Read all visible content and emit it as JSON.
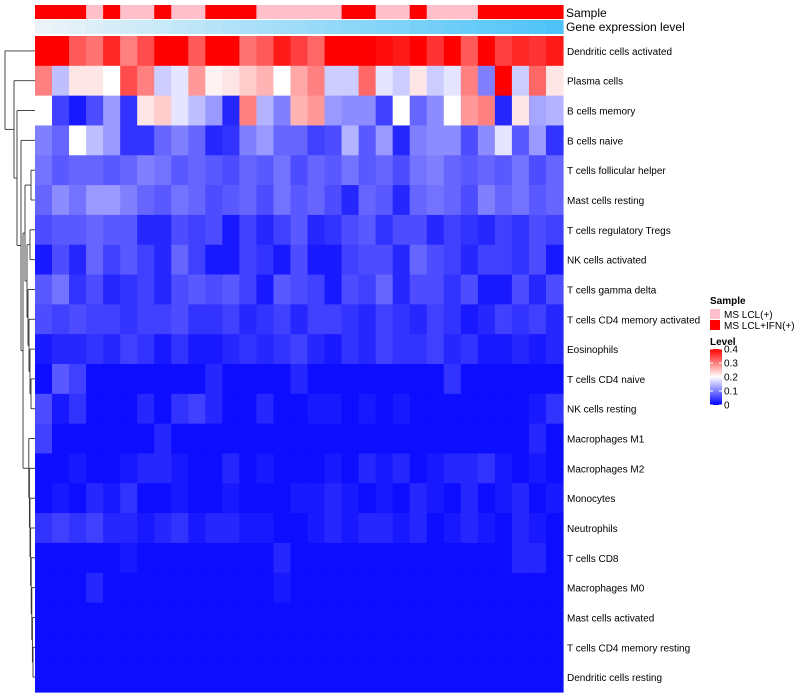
{
  "chart_data": {
    "type": "heatmap",
    "annotation_labels": [
      "Sample",
      "Gene expression level"
    ],
    "rows": [
      "Dendritic cells activated",
      "Plasma cells",
      "B cells memory",
      "B cells naive",
      "T cells follicular helper",
      "Mast cells resting",
      "T cells regulatory  Tregs",
      "NK cells activated",
      "T cells gamma delta",
      "T cells CD4 memory activated",
      "Eosinophils",
      "T cells CD4 naive",
      "NK cells resting",
      "Macrophages M1",
      "Macrophages M2",
      "Monocytes",
      "Neutrophils",
      "T cells CD8",
      "Macrophages M0",
      "Mast cells activated",
      "T cells CD4 memory resting",
      "Dendritic cells resting"
    ],
    "sample_groups": [
      "MS LCL+IFN(+)",
      "MS LCL+IFN(+)",
      "MS LCL+IFN(+)",
      "MS LCL(+)",
      "MS LCL+IFN(+)",
      "MS LCL(+)",
      "MS LCL(+)",
      "MS LCL+IFN(+)",
      "MS LCL(+)",
      "MS LCL(+)",
      "MS LCL+IFN(+)",
      "MS LCL+IFN(+)",
      "MS LCL+IFN(+)",
      "MS LCL(+)",
      "MS LCL(+)",
      "MS LCL(+)",
      "MS LCL(+)",
      "MS LCL(+)",
      "MS LCL+IFN(+)",
      "MS LCL+IFN(+)",
      "MS LCL(+)",
      "MS LCL(+)",
      "MS LCL+IFN(+)",
      "MS LCL(+)",
      "MS LCL(+)",
      "MS LCL(+)",
      "MS LCL+IFN(+)",
      "MS LCL+IFN(+)",
      "MS LCL+IFN(+)",
      "MS LCL+IFN(+)",
      "MS LCL+IFN(+)"
    ],
    "values": [
      [
        0.4,
        0.42,
        0.33,
        0.31,
        0.37,
        0.3,
        0.34,
        0.41,
        0.42,
        0.33,
        0.45,
        0.44,
        0.31,
        0.33,
        0.38,
        0.35,
        0.32,
        0.43,
        0.45,
        0.4,
        0.39,
        0.38,
        0.4,
        0.36,
        0.42,
        0.33,
        0.45,
        0.35,
        0.37,
        0.36,
        0.38
      ],
      [
        0.3,
        0.15,
        0.22,
        0.22,
        0.2,
        0.34,
        0.3,
        0.16,
        0.18,
        0.28,
        0.21,
        0.22,
        0.24,
        0.26,
        0.2,
        0.27,
        0.3,
        0.16,
        0.16,
        0.32,
        0.18,
        0.16,
        0.22,
        0.16,
        0.18,
        0.3,
        0.1,
        0.5,
        0.16,
        0.32,
        0.22
      ],
      [
        0.2,
        0.05,
        0.02,
        0.06,
        0.12,
        0.04,
        0.22,
        0.24,
        0.18,
        0.15,
        0.12,
        0.03,
        0.3,
        0.14,
        0.1,
        0.26,
        0.28,
        0.12,
        0.11,
        0.11,
        0.05,
        0.2,
        0.08,
        0.11,
        0.2,
        0.28,
        0.3,
        0.03,
        0.22,
        0.13,
        0.14
      ],
      [
        0.1,
        0.08,
        0.2,
        0.15,
        0.12,
        0.04,
        0.04,
        0.08,
        0.1,
        0.08,
        0.03,
        0.04,
        0.1,
        0.12,
        0.08,
        0.08,
        0.05,
        0.06,
        0.14,
        0.07,
        0.12,
        0.03,
        0.1,
        0.11,
        0.11,
        0.06,
        0.11,
        0.18,
        0.07,
        0.12,
        0.04
      ],
      [
        0.09,
        0.07,
        0.08,
        0.08,
        0.07,
        0.08,
        0.1,
        0.09,
        0.07,
        0.08,
        0.07,
        0.06,
        0.08,
        0.07,
        0.09,
        0.06,
        0.08,
        0.07,
        0.09,
        0.07,
        0.08,
        0.06,
        0.09,
        0.1,
        0.08,
        0.07,
        0.08,
        0.07,
        0.09,
        0.06,
        0.08
      ],
      [
        0.08,
        0.11,
        0.09,
        0.12,
        0.12,
        0.1,
        0.08,
        0.07,
        0.09,
        0.08,
        0.06,
        0.07,
        0.08,
        0.06,
        0.09,
        0.07,
        0.08,
        0.06,
        0.03,
        0.08,
        0.07,
        0.03,
        0.08,
        0.09,
        0.08,
        0.06,
        0.1,
        0.08,
        0.09,
        0.07,
        0.08
      ],
      [
        0.06,
        0.07,
        0.07,
        0.08,
        0.07,
        0.07,
        0.03,
        0.03,
        0.06,
        0.05,
        0.06,
        0.02,
        0.05,
        0.03,
        0.05,
        0.07,
        0.03,
        0.04,
        0.06,
        0.07,
        0.04,
        0.06,
        0.06,
        0.03,
        0.05,
        0.04,
        0.03,
        0.05,
        0.04,
        0.06,
        0.05
      ],
      [
        0.02,
        0.06,
        0.03,
        0.08,
        0.05,
        0.07,
        0.05,
        0.03,
        0.08,
        0.05,
        0.02,
        0.02,
        0.05,
        0.04,
        0.02,
        0.06,
        0.02,
        0.02,
        0.05,
        0.06,
        0.06,
        0.03,
        0.08,
        0.06,
        0.05,
        0.03,
        0.05,
        0.05,
        0.04,
        0.06,
        0.02
      ],
      [
        0.07,
        0.09,
        0.04,
        0.06,
        0.03,
        0.04,
        0.05,
        0.03,
        0.06,
        0.07,
        0.06,
        0.07,
        0.05,
        0.02,
        0.07,
        0.06,
        0.05,
        0.02,
        0.06,
        0.05,
        0.08,
        0.03,
        0.06,
        0.06,
        0.04,
        0.06,
        0.02,
        0.02,
        0.06,
        0.03,
        0.06
      ],
      [
        0.06,
        0.05,
        0.06,
        0.05,
        0.05,
        0.04,
        0.05,
        0.05,
        0.06,
        0.04,
        0.04,
        0.05,
        0.03,
        0.04,
        0.05,
        0.03,
        0.05,
        0.05,
        0.04,
        0.03,
        0.05,
        0.04,
        0.03,
        0.05,
        0.04,
        0.02,
        0.03,
        0.05,
        0.04,
        0.05,
        0.03
      ],
      [
        0.02,
        0.03,
        0.03,
        0.04,
        0.03,
        0.05,
        0.04,
        0.02,
        0.04,
        0.02,
        0.02,
        0.03,
        0.04,
        0.03,
        0.04,
        0.05,
        0.03,
        0.02,
        0.04,
        0.03,
        0.05,
        0.04,
        0.04,
        0.05,
        0.03,
        0.04,
        0.02,
        0.02,
        0.03,
        0.02,
        0.03
      ],
      [
        0.01,
        0.07,
        0.05,
        0.01,
        0.01,
        0.01,
        0.01,
        0.01,
        0.01,
        0.01,
        0.03,
        0.01,
        0.01,
        0.01,
        0.01,
        0.03,
        0.01,
        0.01,
        0.01,
        0.01,
        0.01,
        0.01,
        0.01,
        0.01,
        0.04,
        0.01,
        0.01,
        0.01,
        0.01,
        0.01,
        0.01
      ],
      [
        0.06,
        0.02,
        0.04,
        0.01,
        0.01,
        0.01,
        0.03,
        0.01,
        0.04,
        0.05,
        0.03,
        0.01,
        0.01,
        0.03,
        0.01,
        0.01,
        0.02,
        0.02,
        0.01,
        0.02,
        0.01,
        0.02,
        0.01,
        0.01,
        0.01,
        0.01,
        0.01,
        0.01,
        0.01,
        0.02,
        0.04
      ],
      [
        0.05,
        0.01,
        0.01,
        0.01,
        0.01,
        0.01,
        0.01,
        0.03,
        0.01,
        0.01,
        0.01,
        0.01,
        0.01,
        0.01,
        0.01,
        0.01,
        0.01,
        0.01,
        0.01,
        0.01,
        0.01,
        0.01,
        0.01,
        0.01,
        0.01,
        0.01,
        0.01,
        0.01,
        0.01,
        0.03,
        0.01
      ],
      [
        0.01,
        0.01,
        0.02,
        0.01,
        0.01,
        0.02,
        0.03,
        0.03,
        0.02,
        0.01,
        0.01,
        0.03,
        0.01,
        0.02,
        0.01,
        0.01,
        0.01,
        0.02,
        0.01,
        0.03,
        0.02,
        0.03,
        0.01,
        0.02,
        0.03,
        0.03,
        0.04,
        0.02,
        0.01,
        0.02,
        0.01
      ],
      [
        0.01,
        0.02,
        0.01,
        0.03,
        0.02,
        0.04,
        0.01,
        0.01,
        0.02,
        0.01,
        0.01,
        0.02,
        0.01,
        0.01,
        0.01,
        0.02,
        0.02,
        0.03,
        0.02,
        0.01,
        0.02,
        0.01,
        0.03,
        0.02,
        0.01,
        0.03,
        0.01,
        0.02,
        0.03,
        0.01,
        0.02
      ],
      [
        0.04,
        0.05,
        0.04,
        0.05,
        0.03,
        0.03,
        0.02,
        0.03,
        0.04,
        0.02,
        0.03,
        0.03,
        0.02,
        0.02,
        0.01,
        0.01,
        0.02,
        0.03,
        0.02,
        0.03,
        0.03,
        0.02,
        0.03,
        0.01,
        0.02,
        0.03,
        0.02,
        0.01,
        0.03,
        0.02,
        0.01
      ],
      [
        0.01,
        0.01,
        0.01,
        0.01,
        0.01,
        0.02,
        0.01,
        0.01,
        0.01,
        0.01,
        0.01,
        0.01,
        0.01,
        0.01,
        0.03,
        0.01,
        0.01,
        0.01,
        0.01,
        0.01,
        0.01,
        0.01,
        0.01,
        0.01,
        0.01,
        0.01,
        0.01,
        0.01,
        0.03,
        0.03,
        0.01
      ],
      [
        0.01,
        0.01,
        0.01,
        0.03,
        0.01,
        0.01,
        0.01,
        0.01,
        0.01,
        0.01,
        0.01,
        0.01,
        0.01,
        0.01,
        0.02,
        0.01,
        0.01,
        0.01,
        0.01,
        0.01,
        0.01,
        0.01,
        0.01,
        0.01,
        0.01,
        0.01,
        0.01,
        0.01,
        0.01,
        0.01,
        0.01
      ],
      [
        0.01,
        0.01,
        0.01,
        0.01,
        0.01,
        0.01,
        0.01,
        0.01,
        0.01,
        0.01,
        0.01,
        0.01,
        0.01,
        0.01,
        0.01,
        0.01,
        0.01,
        0.01,
        0.01,
        0.01,
        0.01,
        0.01,
        0.01,
        0.01,
        0.01,
        0.01,
        0.01,
        0.01,
        0.01,
        0.01,
        0.01
      ],
      [
        0.01,
        0.01,
        0.01,
        0.01,
        0.01,
        0.01,
        0.01,
        0.01,
        0.01,
        0.01,
        0.01,
        0.01,
        0.01,
        0.01,
        0.01,
        0.01,
        0.01,
        0.01,
        0.01,
        0.01,
        0.01,
        0.01,
        0.01,
        0.01,
        0.01,
        0.01,
        0.01,
        0.01,
        0.01,
        0.01,
        0.01
      ],
      [
        0.01,
        0.01,
        0.01,
        0.01,
        0.01,
        0.01,
        0.01,
        0.01,
        0.01,
        0.01,
        0.01,
        0.01,
        0.01,
        0.01,
        0.01,
        0.01,
        0.01,
        0.01,
        0.01,
        0.01,
        0.01,
        0.01,
        0.01,
        0.01,
        0.01,
        0.01,
        0.01,
        0.01,
        0.01,
        0.01,
        0.01
      ]
    ],
    "legend": {
      "sample": {
        "title": "Sample",
        "items": [
          {
            "label": "MS LCL(+)",
            "color": "#FFC0CB"
          },
          {
            "label": "MS LCL+IFN(+)",
            "color": "#FF0000"
          }
        ]
      },
      "level": {
        "title": "Level",
        "ticks": [
          0.4,
          0.3,
          0.2,
          0.1,
          0
        ],
        "tick_labels": [
          "0.4",
          "0.3",
          "0.2",
          "0.1",
          "0"
        ],
        "range": [
          0,
          0.4
        ]
      }
    },
    "colors": {
      "low": "#0000FF",
      "mid": "#FFFFFF",
      "high": "#FF0000",
      "expr_start": "#ECF4F8",
      "expr_end": "#4FC3F7",
      "dendrogram": "#333333"
    }
  }
}
